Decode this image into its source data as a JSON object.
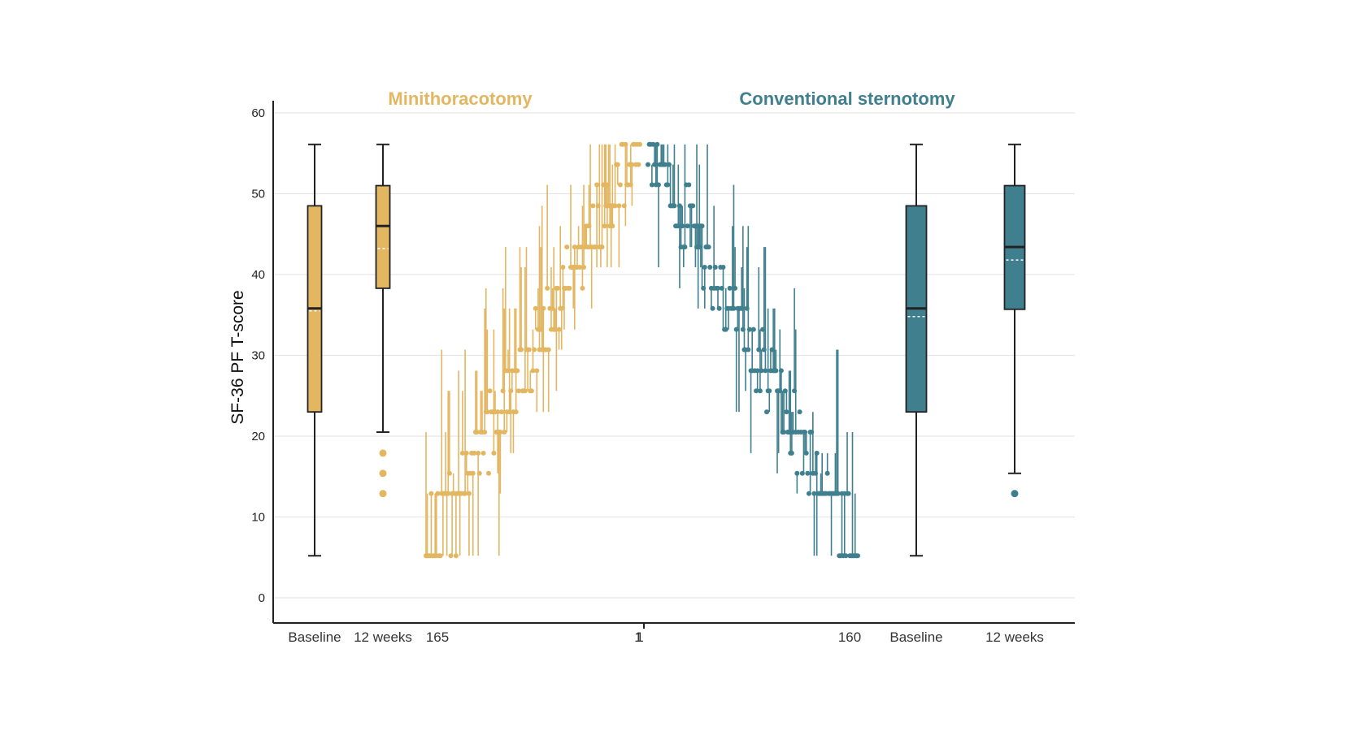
{
  "chart_data": {
    "type": "box+waterfall",
    "ylabel": "SF-36 PF T-score",
    "ylim": [
      0,
      60
    ],
    "yticks": [
      0,
      10,
      20,
      30,
      40,
      50,
      60
    ],
    "grid": true,
    "colors": {
      "mini": "#E3B662",
      "conv": "#3F7F8E",
      "axis": "#222222",
      "grid": "#e6e6e6",
      "median": "#222222",
      "mean": "#ffffff"
    },
    "groups": [
      {
        "key": "mini",
        "title": "Minithoracotomy",
        "boxes": [
          {
            "label": "Baseline",
            "whisker_low": 5.2,
            "q1": 23,
            "median": 35.8,
            "mean": 35.5,
            "q3": 48.5,
            "whisker_high": 56.1,
            "outliers": []
          },
          {
            "label": "12 weeks",
            "whisker_low": 20.5,
            "q1": 38.3,
            "median": 46,
            "mean": 43.2,
            "q3": 51,
            "whisker_high": 56.1,
            "outliers": [
              12.9,
              15.4,
              17.9
            ]
          }
        ],
        "waterfall": {
          "n": 165,
          "start_label": "165",
          "end_label": "1",
          "direction": "increasing"
        }
      },
      {
        "key": "conv",
        "title": "Conventional sternotomy",
        "boxes": [
          {
            "label": "Baseline",
            "whisker_low": 5.2,
            "q1": 23,
            "median": 35.8,
            "mean": 34.8,
            "q3": 48.5,
            "whisker_high": 56.1,
            "outliers": []
          },
          {
            "label": "12 weeks",
            "whisker_low": 15.4,
            "q1": 35.7,
            "median": 43.4,
            "mean": 41.8,
            "q3": 51,
            "whisker_high": 56.1,
            "outliers": [
              12.9
            ]
          }
        ],
        "waterfall": {
          "n": 160,
          "start_label": "1",
          "end_label": "160",
          "direction": "decreasing"
        }
      }
    ]
  }
}
